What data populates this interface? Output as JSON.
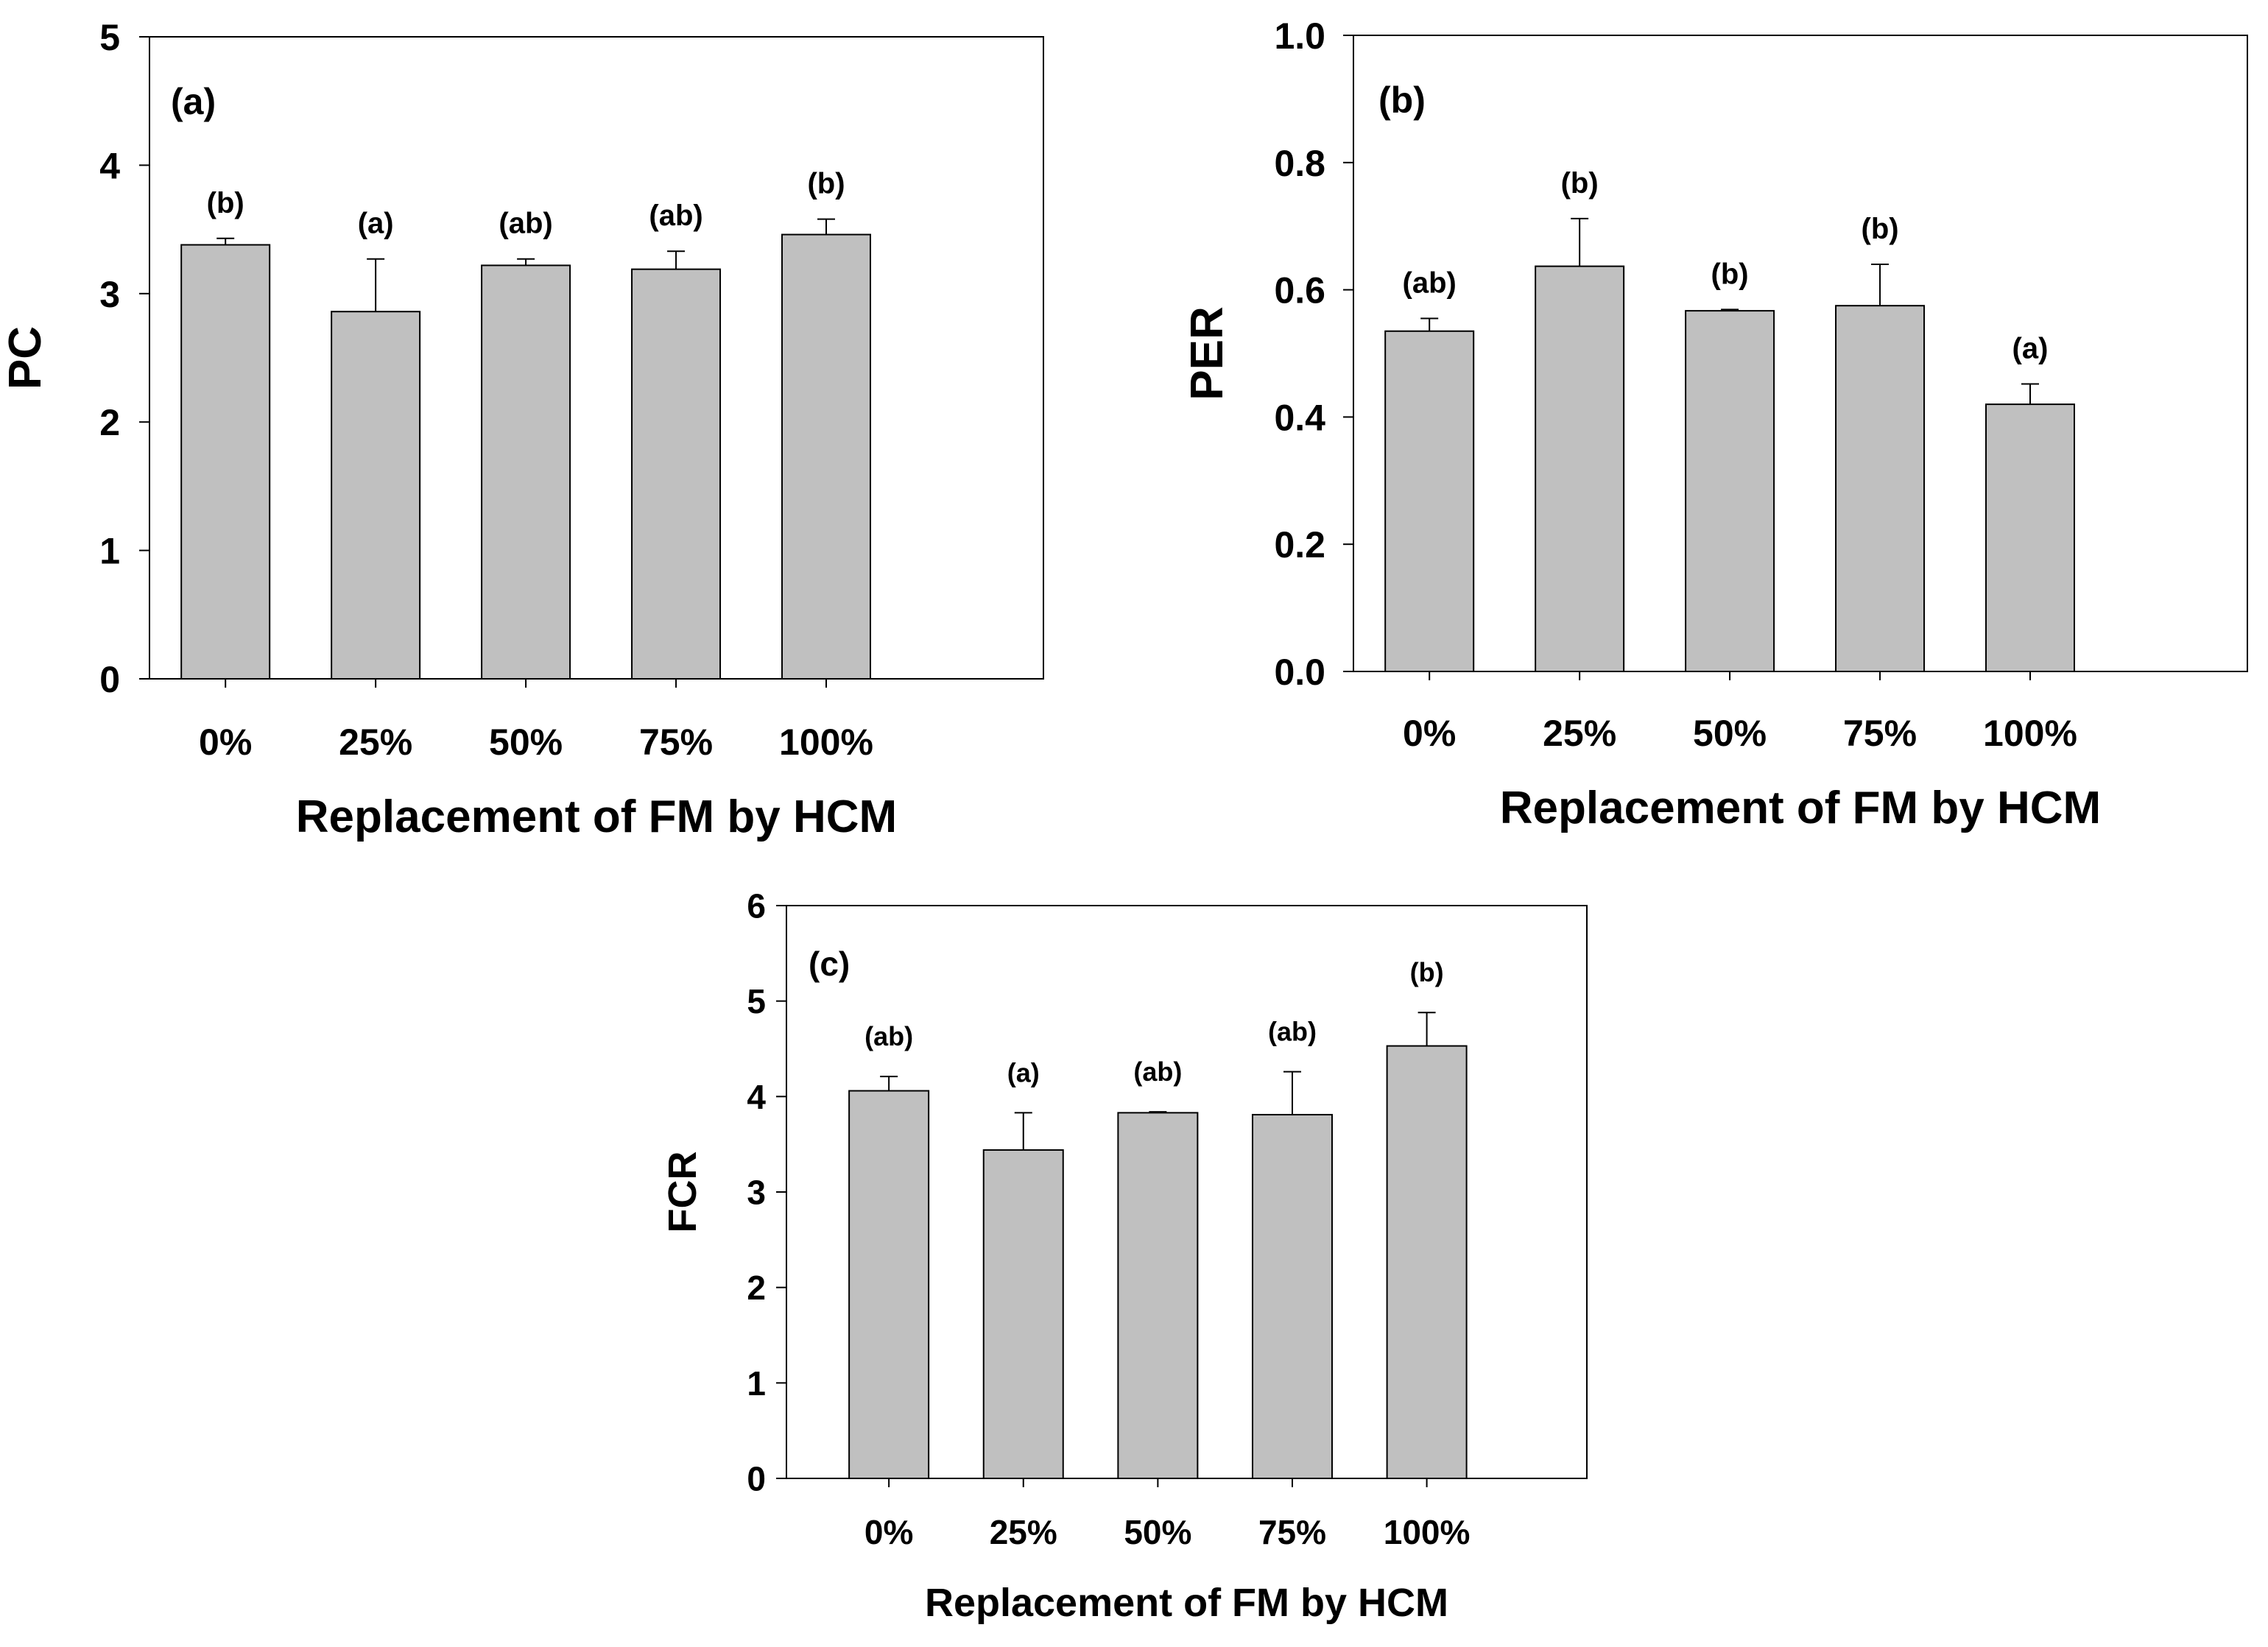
{
  "figure": {
    "bar_color": "#c0c0c0",
    "bar_edge_color": "#000000",
    "background": "#ffffff"
  },
  "chart_data": [
    {
      "id": "a",
      "type": "bar",
      "panel_label": "(a)",
      "title": "",
      "xlabel": "Replacement of FM by HCM",
      "ylabel": "PC",
      "categories": [
        "0%",
        "25%",
        "50%",
        "75%",
        "100%"
      ],
      "values": [
        3.38,
        2.86,
        3.22,
        3.19,
        3.46
      ],
      "errors": [
        0.05,
        0.41,
        0.05,
        0.14,
        0.12
      ],
      "significance": [
        "(b)",
        "(a)",
        "(ab)",
        "(ab)",
        "(b)"
      ],
      "ylim": [
        0,
        5
      ],
      "yticks": [
        0,
        1,
        2,
        3,
        4,
        5
      ],
      "ytick_labels": [
        "0",
        "1",
        "2",
        "3",
        "4",
        "5"
      ],
      "grid": false
    },
    {
      "id": "b",
      "type": "bar",
      "panel_label": "(b)",
      "title": "",
      "xlabel": "Replacement of FM by HCM",
      "ylabel": "PER",
      "categories": [
        "0%",
        "25%",
        "50%",
        "75%",
        "100%"
      ],
      "values": [
        0.535,
        0.637,
        0.567,
        0.575,
        0.42
      ],
      "errors": [
        0.02,
        0.075,
        0.002,
        0.065,
        0.032
      ],
      "significance": [
        "(ab)",
        "(b)",
        "(b)",
        "(b)",
        "(a)"
      ],
      "ylim": [
        0,
        1
      ],
      "yticks": [
        0,
        0.2,
        0.4,
        0.6,
        0.8,
        1.0
      ],
      "ytick_labels": [
        "0.0",
        "0.2",
        "0.4",
        "0.6",
        "0.8",
        "1.0"
      ],
      "grid": false
    },
    {
      "id": "c",
      "type": "bar",
      "panel_label": "(c)",
      "title": "",
      "xlabel": "Replacement of FM by HCM",
      "ylabel": "FCR",
      "categories": [
        "0%",
        "25%",
        "50%",
        "75%",
        "100%"
      ],
      "values": [
        4.06,
        3.44,
        3.83,
        3.81,
        4.53
      ],
      "errors": [
        0.15,
        0.39,
        0.01,
        0.45,
        0.35
      ],
      "significance": [
        "(ab)",
        "(a)",
        "(ab)",
        "(ab)",
        "(b)"
      ],
      "ylim": [
        0,
        6
      ],
      "yticks": [
        0,
        1,
        2,
        3,
        4,
        5,
        6
      ],
      "ytick_labels": [
        "0",
        "1",
        "2",
        "3",
        "4",
        "5",
        "6"
      ],
      "grid": false
    }
  ]
}
